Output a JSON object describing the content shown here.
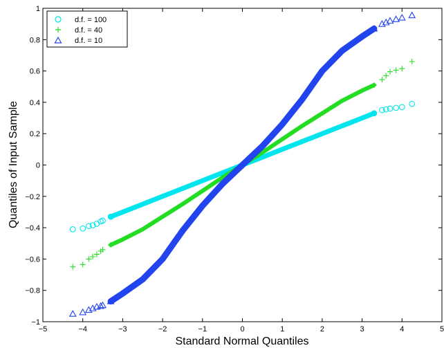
{
  "chart_data": {
    "type": "scatter",
    "title": "",
    "xlabel": "Standard Normal Quantiles",
    "ylabel": "Quantiles of Input Sample",
    "xlim": [
      -5,
      5
    ],
    "ylim": [
      -1,
      1
    ],
    "xticks": [
      "−5",
      "−4",
      "−3",
      "−2",
      "−1",
      "0",
      "1",
      "2",
      "3",
      "4",
      "5"
    ],
    "yticks": [
      "−1",
      "−0.8",
      "−0.6",
      "−0.4",
      "−0.2",
      "0",
      "0.2",
      "0.4",
      "0.6",
      "0.8",
      "1"
    ],
    "grid": false,
    "legend_position": "top-left",
    "series": [
      {
        "name": "d.f. = 100",
        "marker": "circle",
        "color": "#00e5ee",
        "x": [
          -4.25,
          -4.0,
          -3.85,
          -3.75,
          -3.65,
          -3.55,
          -3.5,
          -3.3,
          -3.0,
          -2.5,
          -2.0,
          -1.5,
          -1.0,
          -0.5,
          0.0,
          0.5,
          1.0,
          1.5,
          2.0,
          2.5,
          3.0,
          3.3,
          3.5,
          3.6,
          3.7,
          3.85,
          4.0,
          4.25
        ],
        "y": [
          -0.41,
          -0.405,
          -0.39,
          -0.385,
          -0.375,
          -0.36,
          -0.355,
          -0.33,
          -0.3,
          -0.25,
          -0.2,
          -0.15,
          -0.1,
          -0.05,
          0.0,
          0.05,
          0.1,
          0.15,
          0.2,
          0.25,
          0.3,
          0.33,
          0.35,
          0.355,
          0.36,
          0.365,
          0.37,
          0.39
        ]
      },
      {
        "name": "d.f. = 40",
        "marker": "plus",
        "color": "#22dd22",
        "x": [
          -4.25,
          -4.0,
          -3.85,
          -3.75,
          -3.65,
          -3.55,
          -3.5,
          -3.3,
          -3.0,
          -2.5,
          -2.0,
          -1.5,
          -1.0,
          -0.5,
          0.0,
          0.5,
          1.0,
          1.5,
          2.0,
          2.5,
          3.0,
          3.3,
          3.5,
          3.6,
          3.7,
          3.85,
          4.0,
          4.25
        ],
        "y": [
          -0.65,
          -0.635,
          -0.6,
          -0.585,
          -0.57,
          -0.55,
          -0.54,
          -0.51,
          -0.475,
          -0.41,
          -0.33,
          -0.25,
          -0.165,
          -0.08,
          0.0,
          0.08,
          0.165,
          0.25,
          0.33,
          0.41,
          0.475,
          0.51,
          0.545,
          0.57,
          0.595,
          0.605,
          0.615,
          0.66
        ]
      },
      {
        "name": "d.f. = 10",
        "marker": "triangle",
        "color": "#2244ee",
        "x": [
          -4.25,
          -4.0,
          -3.85,
          -3.75,
          -3.65,
          -3.55,
          -3.5,
          -3.3,
          -3.0,
          -2.5,
          -2.0,
          -1.5,
          -1.0,
          -0.5,
          0.0,
          0.5,
          1.0,
          1.5,
          2.0,
          2.5,
          3.0,
          3.3,
          3.5,
          3.6,
          3.7,
          3.85,
          4.0,
          4.25
        ],
        "y": [
          -0.95,
          -0.94,
          -0.925,
          -0.915,
          -0.905,
          -0.9,
          -0.895,
          -0.87,
          -0.82,
          -0.73,
          -0.6,
          -0.42,
          -0.26,
          -0.12,
          0.0,
          0.12,
          0.26,
          0.42,
          0.6,
          0.73,
          0.82,
          0.87,
          0.9,
          0.91,
          0.92,
          0.93,
          0.94,
          0.955
        ]
      }
    ]
  }
}
